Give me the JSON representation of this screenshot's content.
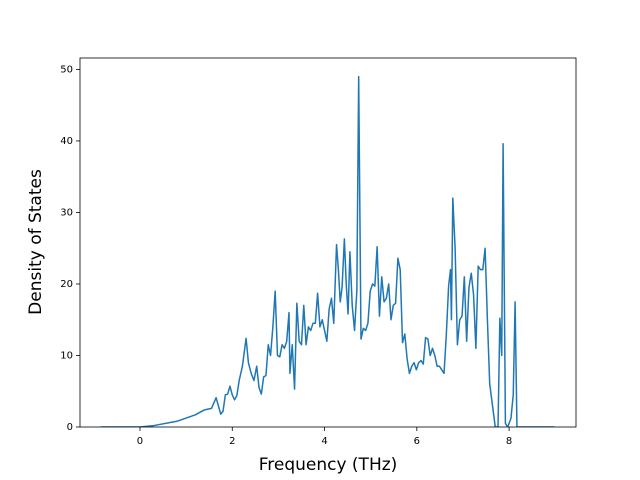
{
  "chart_data": {
    "type": "line",
    "xlabel": "Frequency (THz)",
    "ylabel": "Density of States",
    "color": "#1f77b4",
    "xlim": [
      -1.3,
      9.45
    ],
    "ylim": [
      0,
      51.6
    ],
    "xticks": [
      0,
      2,
      4,
      6,
      8
    ],
    "yticks": [
      0,
      10,
      20,
      30,
      40,
      50
    ],
    "x": [
      -0.85,
      0,
      0.3,
      0.8,
      1.2,
      1.4,
      1.55,
      1.65,
      1.75,
      1.8,
      1.85,
      1.9,
      1.95,
      2.0,
      2.05,
      2.1,
      2.15,
      2.22,
      2.3,
      2.35,
      2.41,
      2.47,
      2.53,
      2.58,
      2.63,
      2.68,
      2.73,
      2.78,
      2.83,
      2.88,
      2.93,
      2.98,
      3.03,
      3.08,
      3.13,
      3.18,
      3.23,
      3.25,
      3.3,
      3.35,
      3.4,
      3.45,
      3.5,
      3.55,
      3.6,
      3.65,
      3.7,
      3.75,
      3.8,
      3.85,
      3.9,
      3.95,
      4.0,
      4.05,
      4.1,
      4.15,
      4.2,
      4.23,
      4.26,
      4.3,
      4.34,
      4.38,
      4.43,
      4.47,
      4.51,
      4.55,
      4.6,
      4.65,
      4.7,
      4.74,
      4.79,
      4.84,
      4.89,
      4.94,
      4.99,
      5.04,
      5.09,
      5.14,
      5.19,
      5.24,
      5.29,
      5.34,
      5.39,
      5.44,
      5.49,
      5.54,
      5.59,
      5.64,
      5.69,
      5.74,
      5.79,
      5.84,
      5.89,
      5.94,
      5.99,
      6.04,
      6.09,
      6.14,
      6.19,
      6.24,
      6.29,
      6.34,
      6.39,
      6.44,
      6.49,
      6.54,
      6.59,
      6.64,
      6.69,
      6.73,
      6.75,
      6.78,
      6.83,
      6.88,
      6.93,
      6.98,
      7.03,
      7.08,
      7.13,
      7.18,
      7.23,
      7.28,
      7.33,
      7.38,
      7.43,
      7.48,
      7.53,
      7.58,
      7.63,
      7.7,
      7.76,
      7.8,
      7.84,
      7.87,
      7.92,
      7.97,
      8.04,
      8.09,
      8.13,
      8.17,
      8.98
    ],
    "values": [
      0,
      0,
      0.2,
      0.8,
      1.7,
      2.4,
      2.6,
      4.1,
      1.8,
      2.2,
      4.5,
      4.6,
      5.7,
      4.5,
      3.8,
      4.4,
      6.5,
      8.5,
      12.4,
      9.0,
      7.5,
      6.5,
      8.5,
      5.5,
      4.6,
      7.0,
      7.2,
      11.5,
      10.0,
      14.0,
      19.0,
      10.0,
      9.8,
      11.5,
      11.0,
      12.0,
      16.0,
      7.5,
      11.5,
      5.3,
      17.3,
      12.0,
      11.5,
      17.0,
      11.5,
      14.0,
      13.5,
      14.5,
      14.5,
      18.7,
      14.0,
      15.0,
      13.5,
      12.0,
      16.5,
      18.0,
      14.5,
      20.0,
      25.5,
      22.0,
      17.5,
      19.5,
      26.3,
      20.0,
      15.8,
      24.5,
      17.0,
      13.5,
      19.0,
      49.0,
      12.3,
      13.8,
      13.5,
      14.5,
      19.0,
      20.0,
      19.7,
      25.2,
      15.5,
      21.0,
      17.5,
      18.0,
      20.0,
      15.0,
      17.0,
      17.3,
      23.6,
      22.0,
      11.8,
      13.0,
      9.5,
      7.5,
      8.5,
      9.0,
      8.0,
      9.0,
      9.3,
      8.8,
      12.5,
      12.3,
      10.0,
      11.0,
      10.0,
      8.5,
      8.5,
      8.0,
      7.5,
      13.0,
      19.8,
      22.0,
      15.0,
      32.0,
      25.0,
      11.5,
      15.0,
      15.5,
      21.0,
      12.0,
      19.5,
      21.5,
      18.5,
      11.0,
      22.5,
      22.0,
      22.0,
      25.0,
      15.0,
      6.0,
      3.5,
      0,
      0,
      15.2,
      10.0,
      39.6,
      0.5,
      0,
      1.2,
      4.5,
      17.5,
      0,
      0
    ]
  }
}
